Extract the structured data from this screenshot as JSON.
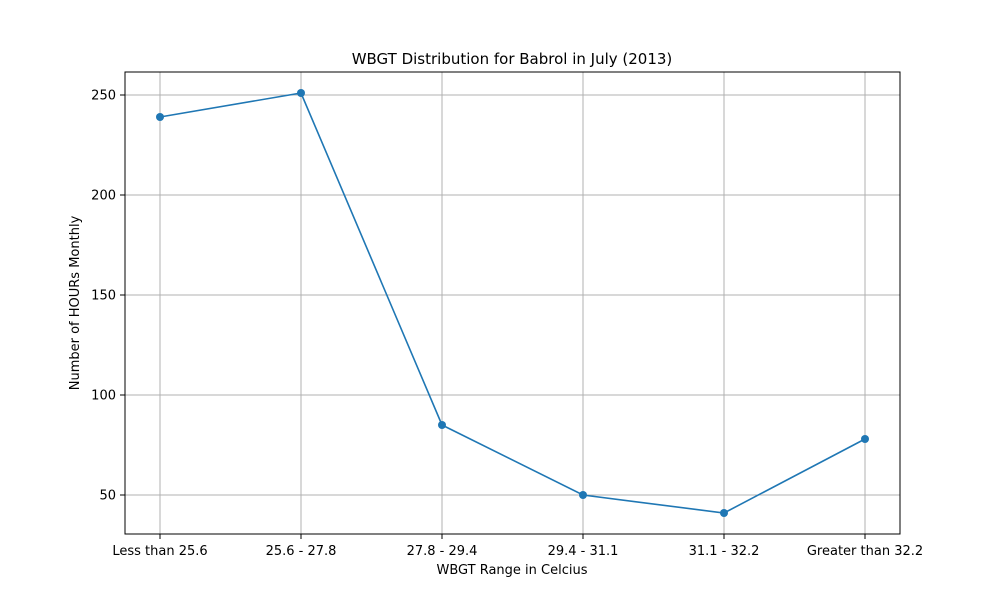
{
  "chart_data": {
    "type": "line",
    "title": "WBGT Distribution for Babrol in July (2013)",
    "xlabel": "WBGT Range in Celcius",
    "ylabel": "Number of HOURs Monthly",
    "categories": [
      "Less than 25.6",
      "25.6 - 27.8",
      "27.8 - 29.4",
      "29.4 - 31.1",
      "31.1 - 32.2",
      "Greater than 32.2"
    ],
    "series": [
      {
        "values": [
          239,
          251,
          85,
          50,
          41,
          78
        ]
      }
    ],
    "ylim": [
      30.5,
      261.5
    ],
    "yticks": [
      50,
      100,
      150,
      200,
      250
    ],
    "ytick_labels": [
      "50",
      "100",
      "150",
      "200",
      "250"
    ],
    "grid": true,
    "colors": {
      "line": "#1f77b4",
      "grid": "#b0b0b0",
      "axes": "#000000"
    },
    "markers": "circle"
  }
}
